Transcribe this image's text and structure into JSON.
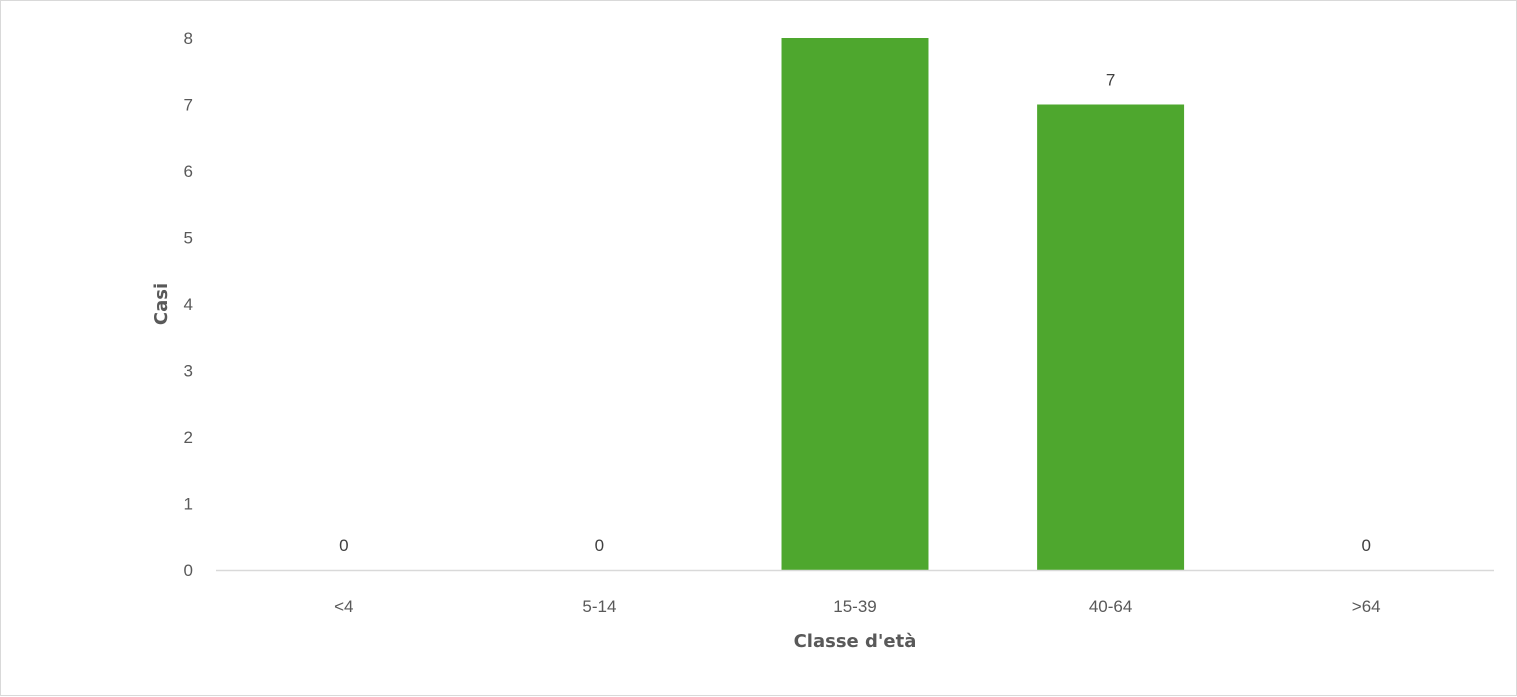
{
  "chart_data": {
    "type": "bar",
    "title": "",
    "xlabel": "Classe d'età",
    "ylabel": "Casi",
    "categories": [
      "<4",
      "5-14",
      "15-39",
      "40-64",
      ">64"
    ],
    "series": [
      {
        "values": [
          0,
          0,
          8,
          7,
          0
        ],
        "color": "#4ea72e"
      }
    ],
    "data_labels": [
      "0",
      "0",
      "",
      "7",
      "0"
    ],
    "ylim": [
      0,
      8
    ],
    "yticks": [
      0,
      1,
      2,
      3,
      4,
      5,
      6,
      7,
      8
    ],
    "ytick_labels": [
      "0",
      "1",
      "2",
      "3",
      "4",
      "5",
      "6",
      "7",
      "8"
    ],
    "grid": false,
    "legend": "none"
  },
  "colors": {
    "bar": "#4ea72e",
    "axis_line": "#d9d9d9",
    "tick_text": "#595959",
    "label_text": "#404040"
  }
}
